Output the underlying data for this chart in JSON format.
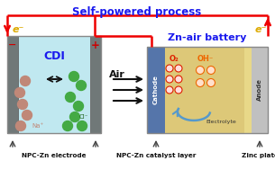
{
  "title": "Self-powered process",
  "title_color": "#1a1aee",
  "title_fontsize": 8.5,
  "cdi_label": "CDI",
  "battery_label": "Zn-air battery",
  "label_color": "#1a1aee",
  "air_label": "Air",
  "cathode_label": "Cathode",
  "anode_label": "Anode",
  "electrolyte_label": "Electrolyte",
  "o2_label": "O₂",
  "oh_label": "OH⁻",
  "na_label": "Na⁺",
  "cl_label": "Cl⁻",
  "em_label": "e⁻",
  "footer_labels": [
    "NPC-Zn electrode",
    "NPC-Zn catalyst layer",
    "Zinc plate"
  ],
  "bg_color": "#ffffff",
  "red_wire": "#ee0000",
  "cdi_water": "#c0e8f0",
  "cdi_electrode": "#707878",
  "cathode_color": "#5575aa",
  "electrolyte_color": "#ddc878",
  "anode_color": "#c0c0c0",
  "na_color": "#c08878",
  "cl_color": "#44aa44",
  "o2_color": "#dd2200",
  "oh_color": "#ee6600",
  "arrow_blue": "#5599cc"
}
